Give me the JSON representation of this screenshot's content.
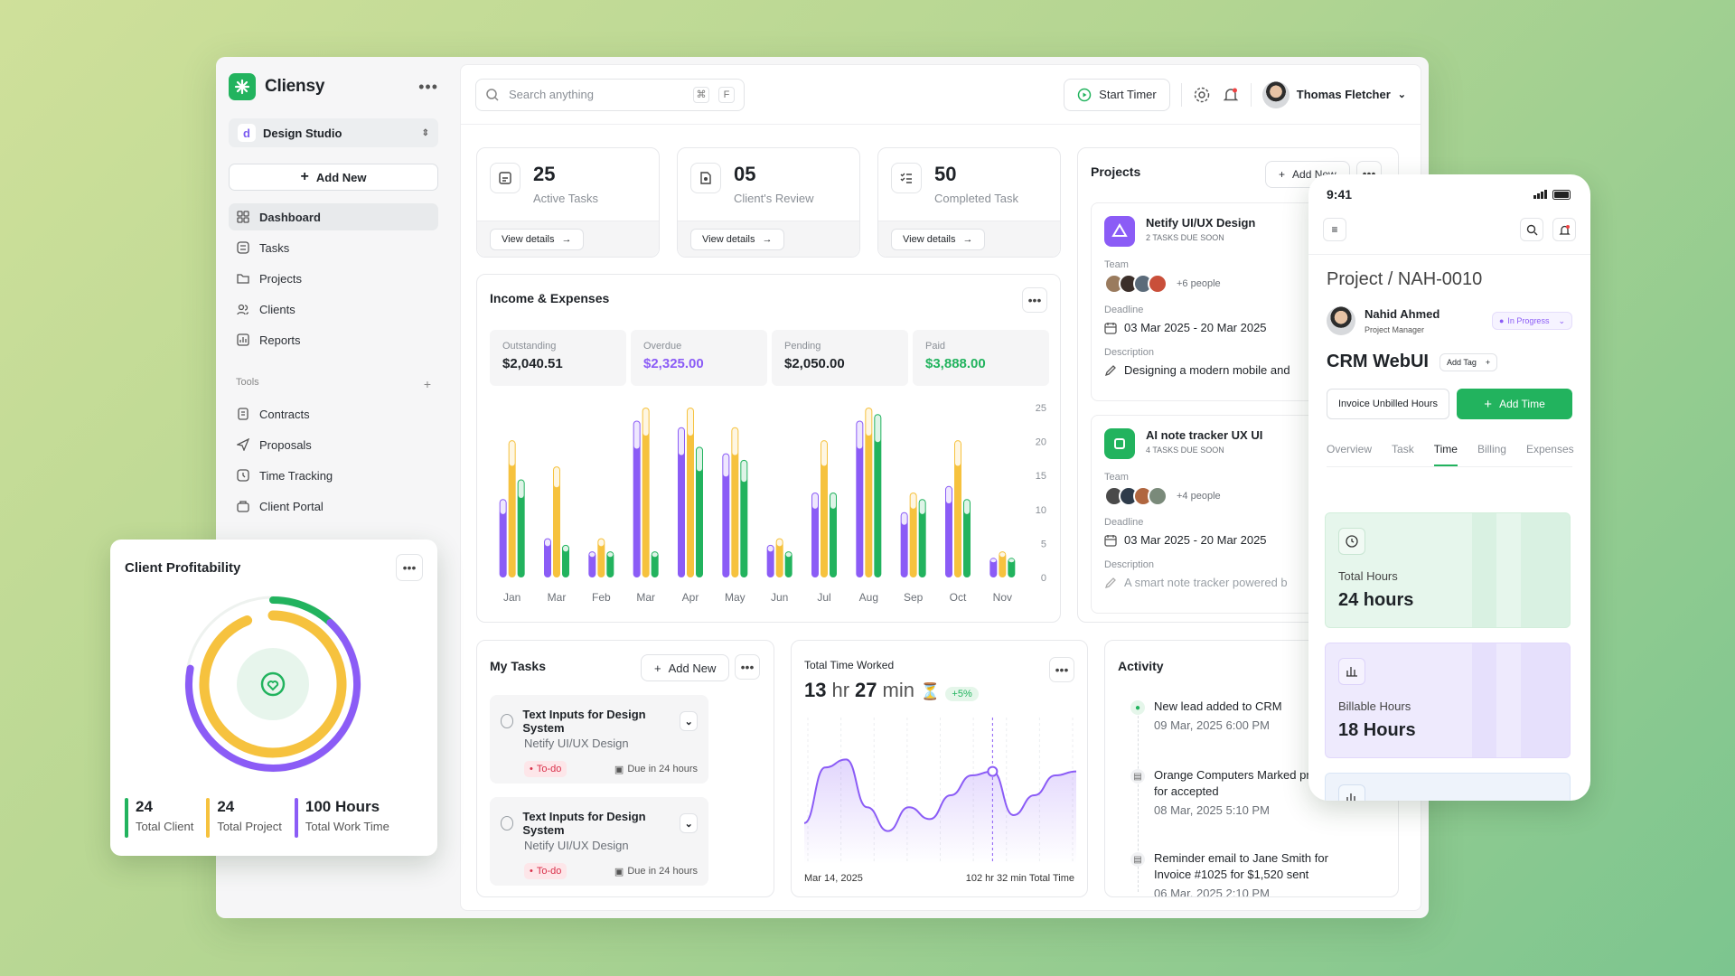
{
  "app": {
    "name": "Cliensy",
    "workspace": "Design Studio",
    "workspace_initial": "d",
    "add_new": "Add New"
  },
  "sidebar": {
    "items": [
      {
        "label": "Dashboard",
        "icon": "grid-icon"
      },
      {
        "label": "Tasks",
        "icon": "checklist-icon"
      },
      {
        "label": "Projects",
        "icon": "folder-icon"
      },
      {
        "label": "Clients",
        "icon": "users-icon"
      },
      {
        "label": "Reports",
        "icon": "chart-icon"
      }
    ],
    "tools_label": "Tools",
    "tools": [
      {
        "label": "Contracts",
        "icon": "document-icon"
      },
      {
        "label": "Proposals",
        "icon": "send-icon"
      },
      {
        "label": "Time Tracking",
        "icon": "clock-icon"
      },
      {
        "label": "Client Portal",
        "icon": "portal-icon"
      }
    ]
  },
  "topbar": {
    "search_placeholder": "Search anything",
    "kbd1": "⌘",
    "kbd2": "F",
    "start_timer": "Start Timer",
    "user_name": "Thomas Fletcher"
  },
  "stats": [
    {
      "value": "25",
      "label": "Active Tasks",
      "link": "View details"
    },
    {
      "value": "05",
      "label": "Client's Review",
      "link": "View details"
    },
    {
      "value": "50",
      "label": "Completed Task",
      "link": "View details"
    }
  ],
  "income": {
    "title": "Income & Expenses",
    "metrics": [
      {
        "label": "Outstanding",
        "value": "$2,040.51",
        "color": "#1f2328"
      },
      {
        "label": "Overdue",
        "value": "$2,325.00",
        "color": "#8b5cf6"
      },
      {
        "label": "Pending",
        "value": "$2,050.00",
        "color": "#1f2328"
      },
      {
        "label": "Paid",
        "value": "$3,888.00",
        "color": "#22b35e"
      }
    ]
  },
  "chart_data": [
    {
      "type": "bar",
      "categories": [
        "Jan",
        "Mar",
        "Feb",
        "Mar",
        "Apr",
        "May",
        "Jun",
        "Jul",
        "Aug",
        "Sep",
        "Oct",
        "Nov"
      ],
      "series": [
        {
          "color": "#8b5cf6",
          "values": [
            12,
            6,
            4,
            24,
            23,
            19,
            5,
            13,
            24,
            10,
            14,
            3
          ]
        },
        {
          "color": "#f6c23e",
          "values": [
            21,
            17,
            6,
            26,
            26,
            23,
            6,
            21,
            26,
            13,
            21,
            4
          ]
        },
        {
          "color": "#22b35e",
          "values": [
            15,
            5,
            4,
            4,
            20,
            18,
            4,
            13,
            25,
            12,
            12,
            3
          ]
        }
      ],
      "yticks": [
        "25",
        "20",
        "15",
        "10",
        "5",
        "0"
      ],
      "ylim": [
        0,
        26
      ]
    },
    {
      "type": "line",
      "values": [
        8,
        22,
        24,
        12,
        6,
        12,
        9,
        15,
        20,
        21,
        10,
        15,
        20,
        21
      ],
      "ylim": [
        0,
        30
      ],
      "highlight_index": 9
    },
    {
      "type": "pie",
      "series": [
        {
          "name": "Total Client",
          "value": 24,
          "color": "#22b35e"
        },
        {
          "name": "Total Project",
          "value": 24,
          "color": "#f6c23e"
        },
        {
          "name": "Total Work Time",
          "value": 100,
          "color": "#8b5cf6"
        }
      ]
    }
  ],
  "projects": {
    "title": "Projects",
    "add": "Add New",
    "items": [
      {
        "name": "Netify UI/UX Design",
        "due": "2 TASKS DUE SOON",
        "team_label": "Team",
        "people": "+6 people",
        "deadline_label": "Deadline",
        "deadline": "03 Mar 2025 - 20 Mar 2025",
        "desc_label": "Description",
        "desc": "Designing a modern mobile and",
        "icon_color": "#8b5cf6"
      },
      {
        "name": "AI note tracker UX UI",
        "due": "4 TASKS DUE SOON",
        "team_label": "Team",
        "people": "+4 people",
        "deadline_label": "Deadline",
        "deadline": "03 Mar 2025 - 20 Mar 2025",
        "desc_label": "Description",
        "desc": "A smart note tracker powered b",
        "icon_color": "#22b35e"
      }
    ]
  },
  "tasks": {
    "title": "My Tasks",
    "add": "Add New",
    "items": [
      {
        "title": "Text Inputs for Design System",
        "project": "Netify UI/UX Design",
        "status": "To-do",
        "due": "Due in 24 hours"
      },
      {
        "title": "Text Inputs for Design System",
        "project": "Netify UI/UX Design",
        "status": "To-do",
        "due": "Due in 24 hours"
      }
    ]
  },
  "time": {
    "title": "Total Time Worked",
    "hr": "13",
    "hr_unit": "hr",
    "min": "27",
    "min_unit": "min",
    "emoji": "⏳",
    "badge": "+5%",
    "date": "Mar 14, 2025",
    "total": "102 hr 32 min Total Time"
  },
  "activity": {
    "title": "Activity",
    "items": [
      {
        "text": "New lead added to CRM",
        "time": "09 Mar, 2025 6:00 PM"
      },
      {
        "text": "Orange Computers Marked proposal for accepted",
        "time": "08 Mar, 2025 5:10 PM"
      },
      {
        "text": "Reminder email to Jane Smith for Invoice #1025 for $1,520 sent",
        "time": "06 Mar, 2025 2:10 PM"
      }
    ]
  },
  "phone": {
    "time": "9:41",
    "breadcrumb": "Project / NAH-0010",
    "manager_name": "Nahid Ahmed",
    "manager_role": "Project Manager",
    "status": "In Progress",
    "project_name": "CRM WebUI",
    "add_tag": "Add Tag",
    "invoice_btn": "Invoice Unbilled Hours",
    "add_time": "Add Time",
    "tabs": [
      "Overview",
      "Task",
      "Time",
      "Billing",
      "Expenses"
    ],
    "active_tab": "Time",
    "cards": [
      {
        "label": "Total Hours",
        "value": "24 hours"
      },
      {
        "label": "Billable Hours",
        "value": "18 Hours"
      }
    ]
  },
  "profit": {
    "title": "Client Profitability",
    "stats": [
      {
        "value": "24",
        "label": "Total Client",
        "color": "#22b35e"
      },
      {
        "value": "24",
        "label": "Total Project",
        "color": "#f6c23e"
      },
      {
        "value": "100 Hours",
        "label": "Total Work Time",
        "color": "#8b5cf6"
      }
    ]
  }
}
